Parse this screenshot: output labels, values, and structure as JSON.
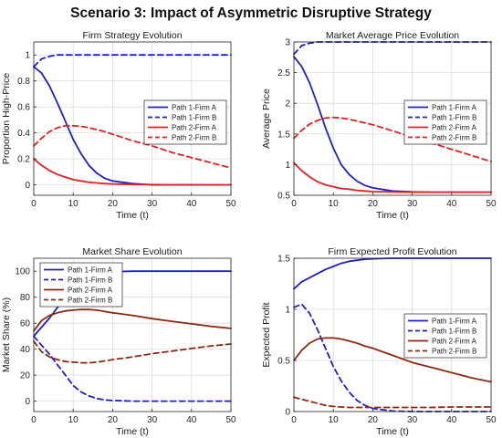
{
  "figure": {
    "title": "Scenario 3: Impact of Asymmetric Disruptive Strategy"
  },
  "chart_data": [
    {
      "type": "line",
      "title": "Firm Strategy Evolution",
      "xlabel": "Time (t)",
      "ylabel": "Proportion High-Price",
      "xlim": [
        0,
        50
      ],
      "ylim": [
        -0.08,
        1.1
      ],
      "xticks": [
        0,
        10,
        20,
        30,
        40,
        50
      ],
      "yticks": [
        0,
        0.2,
        0.4,
        0.6,
        0.8,
        1
      ],
      "grid": true,
      "legend_location": "right",
      "x": [
        0,
        2,
        4,
        6,
        8,
        10,
        12,
        14,
        16,
        18,
        20,
        25,
        30,
        35,
        40,
        45,
        50
      ],
      "series": [
        {
          "name": "Path 1-Firm A",
          "color": "#1f1fc8",
          "dash": "solid",
          "values": [
            0.91,
            0.86,
            0.76,
            0.63,
            0.49,
            0.35,
            0.24,
            0.15,
            0.09,
            0.05,
            0.03,
            0.01,
            0.0,
            0.0,
            0.0,
            0.0,
            0.0
          ]
        },
        {
          "name": "Path 1-Firm B",
          "color": "#1f1fc8",
          "dash": "dashed",
          "values": [
            0.91,
            0.97,
            0.99,
            1.0,
            1.0,
            1.0,
            1.0,
            1.0,
            1.0,
            1.0,
            1.0,
            1.0,
            1.0,
            1.0,
            1.0,
            1.0,
            1.0
          ]
        },
        {
          "name": "Path 2-Firm A",
          "color": "#e02020",
          "dash": "solid",
          "values": [
            0.2,
            0.15,
            0.11,
            0.08,
            0.06,
            0.04,
            0.03,
            0.02,
            0.015,
            0.01,
            0.007,
            0.003,
            0.002,
            0.001,
            0.001,
            0.0,
            0.0
          ]
        },
        {
          "name": "Path 2-Firm B",
          "color": "#e02020",
          "dash": "dashed",
          "values": [
            0.3,
            0.36,
            0.41,
            0.44,
            0.455,
            0.455,
            0.45,
            0.44,
            0.425,
            0.41,
            0.39,
            0.34,
            0.3,
            0.25,
            0.21,
            0.17,
            0.13
          ]
        }
      ]
    },
    {
      "type": "line",
      "title": "Market Average Price Evolution",
      "xlabel": "Time (t)",
      "ylabel": "Average Price",
      "xlim": [
        0,
        50
      ],
      "ylim": [
        0.5,
        3
      ],
      "xticks": [
        0,
        10,
        20,
        30,
        40,
        50
      ],
      "yticks": [
        0.5,
        1,
        1.5,
        2,
        2.5,
        3
      ],
      "grid": true,
      "legend_location": "right",
      "x": [
        0,
        2,
        4,
        6,
        8,
        10,
        12,
        14,
        16,
        18,
        20,
        25,
        30,
        35,
        40,
        45,
        50
      ],
      "series": [
        {
          "name": "Path 1-Firm A",
          "color": "#1f1fc8",
          "dash": "solid",
          "values": [
            2.76,
            2.6,
            2.33,
            1.98,
            1.6,
            1.27,
            1.0,
            0.84,
            0.73,
            0.66,
            0.62,
            0.57,
            0.555,
            0.55,
            0.55,
            0.55,
            0.55
          ]
        },
        {
          "name": "Path 1-Firm B",
          "color": "#1f1fc8",
          "dash": "dashed",
          "values": [
            2.8,
            2.94,
            2.98,
            3.0,
            3.0,
            3.0,
            3.0,
            3.0,
            3.0,
            3.0,
            3.0,
            3.0,
            3.0,
            3.0,
            3.0,
            3.0,
            3.0
          ]
        },
        {
          "name": "Path 2-Firm A",
          "color": "#e02020",
          "dash": "solid",
          "values": [
            1.03,
            0.9,
            0.8,
            0.72,
            0.67,
            0.64,
            0.61,
            0.6,
            0.58,
            0.57,
            0.56,
            0.555,
            0.55,
            0.55,
            0.55,
            0.55,
            0.55
          ]
        },
        {
          "name": "Path 2-Firm B",
          "color": "#e02020",
          "dash": "dashed",
          "values": [
            1.43,
            1.56,
            1.66,
            1.72,
            1.76,
            1.77,
            1.76,
            1.74,
            1.71,
            1.68,
            1.65,
            1.55,
            1.45,
            1.35,
            1.25,
            1.15,
            1.05
          ]
        }
      ]
    },
    {
      "type": "line",
      "title": "Market Share Evolution",
      "xlabel": "Time (t)",
      "ylabel": "Market Share (%)",
      "xlim": [
        0,
        50
      ],
      "ylim": [
        -8,
        110
      ],
      "xticks": [
        0,
        10,
        20,
        30,
        40,
        50
      ],
      "yticks": [
        0,
        20,
        40,
        60,
        80,
        100
      ],
      "grid": true,
      "legend_location": "top-left",
      "x": [
        0,
        2,
        4,
        6,
        8,
        10,
        12,
        14,
        16,
        18,
        20,
        25,
        30,
        35,
        40,
        45,
        50
      ],
      "series": [
        {
          "name": "Path 1-Firm A",
          "color": "#1f1fc8",
          "dash": "solid",
          "values": [
            50,
            57,
            64,
            72,
            80,
            88,
            93,
            96,
            98,
            99,
            99.5,
            100,
            100,
            100,
            100,
            100,
            100
          ]
        },
        {
          "name": "Path 1-Firm B",
          "color": "#1f1fc8",
          "dash": "dashed",
          "values": [
            50,
            43,
            36,
            28,
            20,
            12,
            7,
            4,
            2,
            1,
            0.5,
            0,
            0,
            0,
            0,
            0,
            0
          ]
        },
        {
          "name": "Path 2-Firm A",
          "color": "#8b2a10",
          "dash": "solid",
          "values": [
            54,
            62,
            66,
            68,
            69.5,
            70,
            70.5,
            70.5,
            70,
            69,
            68,
            66,
            63.5,
            61.5,
            59.5,
            57.5,
            56
          ]
        },
        {
          "name": "Path 2-Firm B",
          "color": "#8b2a10",
          "dash": "dashed",
          "values": [
            46,
            38,
            34,
            32,
            30.5,
            30,
            29.5,
            29.5,
            30,
            31,
            32,
            34,
            36.5,
            38.5,
            40.5,
            42.5,
            44
          ]
        }
      ]
    },
    {
      "type": "line",
      "title": "Firm Expected Profit Evolution",
      "xlabel": "Time (t)",
      "ylabel": "Expected Profit",
      "xlim": [
        0,
        50
      ],
      "ylim": [
        0,
        1.5
      ],
      "xticks": [
        0,
        10,
        20,
        30,
        40,
        50
      ],
      "yticks": [
        0,
        0.5,
        1,
        1.5
      ],
      "grid": true,
      "legend_location": "right",
      "x": [
        0,
        2,
        4,
        6,
        8,
        10,
        12,
        14,
        16,
        18,
        20,
        25,
        30,
        35,
        40,
        45,
        50
      ],
      "series": [
        {
          "name": "Path 1-Firm A",
          "color": "#1f1fc8",
          "dash": "solid",
          "values": [
            1.2,
            1.27,
            1.31,
            1.35,
            1.39,
            1.42,
            1.45,
            1.47,
            1.48,
            1.49,
            1.495,
            1.5,
            1.5,
            1.5,
            1.5,
            1.5,
            1.5
          ]
        },
        {
          "name": "Path 1-Firm B",
          "color": "#1f1fc8",
          "dash": "dashed",
          "values": [
            1.02,
            1.05,
            0.96,
            0.8,
            0.62,
            0.44,
            0.3,
            0.19,
            0.11,
            0.06,
            0.03,
            0.005,
            0.0,
            0.0,
            0.0,
            0.0,
            0.0
          ]
        },
        {
          "name": "Path 2-Firm A",
          "color": "#8b2a10",
          "dash": "solid",
          "values": [
            0.5,
            0.6,
            0.67,
            0.71,
            0.72,
            0.72,
            0.71,
            0.69,
            0.67,
            0.64,
            0.62,
            0.55,
            0.48,
            0.43,
            0.38,
            0.33,
            0.29
          ]
        },
        {
          "name": "Path 2-Firm B",
          "color": "#8b2a10",
          "dash": "dashed",
          "values": [
            0.14,
            0.12,
            0.1,
            0.08,
            0.06,
            0.05,
            0.045,
            0.04,
            0.04,
            0.04,
            0.04,
            0.04,
            0.04,
            0.04,
            0.045,
            0.045,
            0.045
          ]
        }
      ]
    }
  ]
}
